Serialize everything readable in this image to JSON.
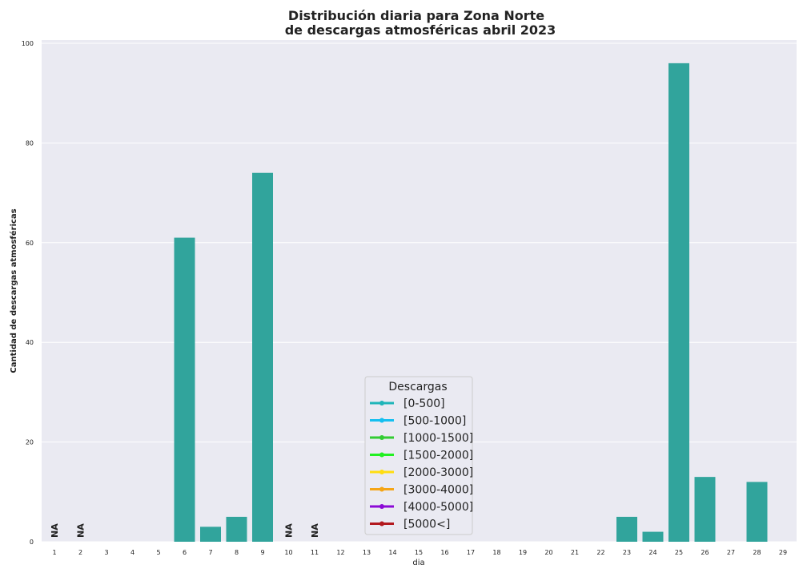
{
  "chart_data": {
    "type": "bar",
    "title_line1": "Distribución diaria para Zona Norte",
    "title_line2": "de descargas atmosféricas abril 2023",
    "xlabel": "dia",
    "ylabel": "Cantidad de descargas atmosféricas",
    "ylim": [
      0,
      100
    ],
    "yticks": [
      0,
      20,
      40,
      60,
      80,
      100
    ],
    "grid": true,
    "categories": [
      "1",
      "2",
      "3",
      "4",
      "5",
      "6",
      "7",
      "8",
      "9",
      "10",
      "11",
      "12",
      "13",
      "14",
      "15",
      "16",
      "17",
      "18",
      "19",
      "20",
      "21",
      "22",
      "23",
      "24",
      "25",
      "26",
      "27",
      "28",
      "29"
    ],
    "values": [
      null,
      null,
      0,
      0,
      0,
      61,
      3,
      5,
      74,
      null,
      null,
      0,
      0,
      0,
      0,
      0,
      0,
      0,
      0,
      0,
      0,
      0,
      5,
      2,
      96,
      13,
      0,
      12,
      0
    ],
    "na_label": "NA",
    "na_days": [
      "1",
      "2",
      "10",
      "11"
    ],
    "bar_color": "#31a49c",
    "legend": {
      "title": "Descargas",
      "position": "lower-center",
      "entries": [
        {
          "label": "[0-500]",
          "color": "#1fb5b9"
        },
        {
          "label": "[500-1000]",
          "color": "#14bff0"
        },
        {
          "label": "[1000-1500]",
          "color": "#33cc33"
        },
        {
          "label": "[1500-2000]",
          "color": "#22f022"
        },
        {
          "label": "[2000-3000]",
          "color": "#ffdd11"
        },
        {
          "label": "[3000-4000]",
          "color": "#f5a516"
        },
        {
          "label": "[4000-5000]",
          "color": "#8c0ad6"
        },
        {
          "label": "[5000<]",
          "color": "#b3191f"
        }
      ]
    }
  }
}
